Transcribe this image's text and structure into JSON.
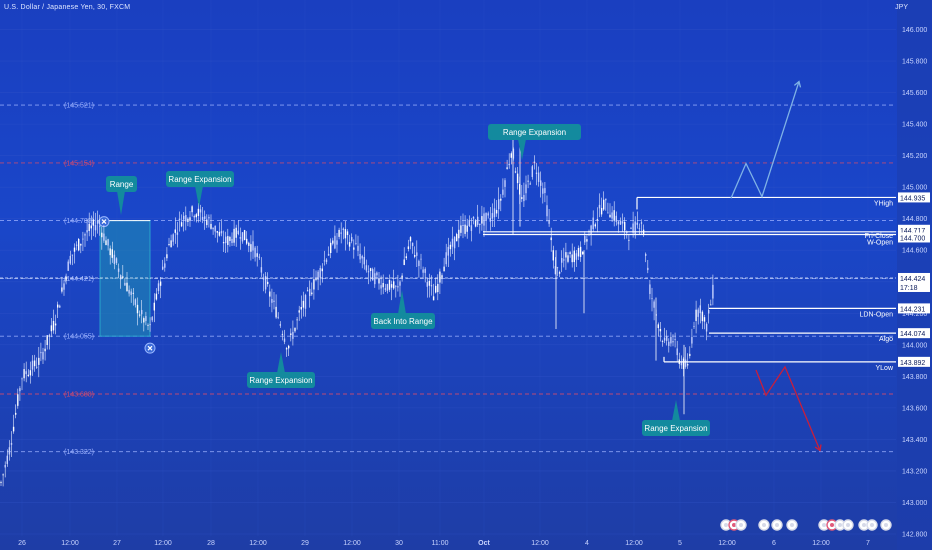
{
  "header": {
    "title": "U.S. Dollar / Japanese Yen, 30, FXCM",
    "currency": "JPY"
  },
  "chart_data": {
    "type": "candlestick",
    "title": "U.S. Dollar / Japanese Yen, 30, FXCM",
    "ylim": [
      142.8,
      146.2
    ],
    "y_ticks": [
      "146.000",
      "145.800",
      "145.600",
      "145.400",
      "145.200",
      "145.000",
      "144.800",
      "144.600",
      "144.400",
      "144.200",
      "144.000",
      "143.800",
      "143.600",
      "143.400",
      "143.200",
      "143.000",
      "142.800"
    ],
    "x_ticks": [
      "26",
      "12:00",
      "27",
      "12:00",
      "28",
      "12:00",
      "29",
      "12:00",
      "30",
      "11:00",
      "Oct",
      "12:00",
      "4",
      "12:00",
      "5",
      "12:00",
      "6",
      "12:00",
      "7"
    ],
    "dashed_levels": [
      {
        "label": "(145.521)",
        "value": 145.521,
        "color": "#9db3ff"
      },
      {
        "label": "(145.154)",
        "value": 145.154,
        "color": "#d74a6a"
      },
      {
        "label": "(144.788)",
        "value": 144.788,
        "color": "#9db3ff"
      },
      {
        "label": "(144.421)",
        "value": 144.421,
        "color": "#9db3ff"
      },
      {
        "label": "(144.055)",
        "value": 144.055,
        "color": "#9db3ff"
      },
      {
        "label": "(143.688)",
        "value": 143.688,
        "color": "#d74a6a"
      },
      {
        "label": "(143.322)",
        "value": 143.322,
        "color": "#9db3ff"
      }
    ],
    "horizontal_lines": [
      {
        "label": "YHigh",
        "value": 144.935
      },
      {
        "label": "Fri-Close",
        "value": 144.717
      },
      {
        "label": "W-Open",
        "value": 144.7
      },
      {
        "label": "LDN-Open",
        "value": 144.231
      },
      {
        "label": "Algo",
        "value": 144.074
      },
      {
        "label": "YLow",
        "value": 143.892
      }
    ],
    "price_tags": [
      {
        "label": "144.935",
        "value": 144.935
      },
      {
        "label": "144.717",
        "value": 144.717
      },
      {
        "label": "144.700",
        "value": 144.7
      },
      {
        "label": "144.424",
        "value": 144.424,
        "current": true,
        "sub": "17:18"
      },
      {
        "label": "144.231",
        "value": 144.231
      },
      {
        "label": "144.074",
        "value": 144.074
      },
      {
        "label": "143.892",
        "value": 143.892
      }
    ],
    "annotations": [
      {
        "label": "Range",
        "pointer": "down"
      },
      {
        "label": "Range Expansion",
        "pointer": "down"
      },
      {
        "label": "Range Expansion",
        "pointer": "up"
      },
      {
        "label": "Back Into Range",
        "pointer": "up"
      },
      {
        "label": "Range Expansion",
        "pointer": "down"
      },
      {
        "label": "Range Expansion",
        "pointer": "up"
      }
    ],
    "range_box": {
      "top": 144.788,
      "bottom": 144.055
    },
    "projections": [
      {
        "direction": "up",
        "color": "#7fb2e6",
        "points": [
          [
            144.93,
            0
          ],
          [
            145.15,
            1
          ],
          [
            144.94,
            2
          ],
          [
            145.67,
            3
          ]
        ]
      },
      {
        "direction": "down",
        "color": "#c81e3c",
        "points": [
          [
            143.84,
            0
          ],
          [
            143.68,
            1
          ],
          [
            143.86,
            2
          ],
          [
            143.33,
            3
          ]
        ]
      }
    ],
    "current_price": 144.424,
    "countdown": "17:18"
  }
}
